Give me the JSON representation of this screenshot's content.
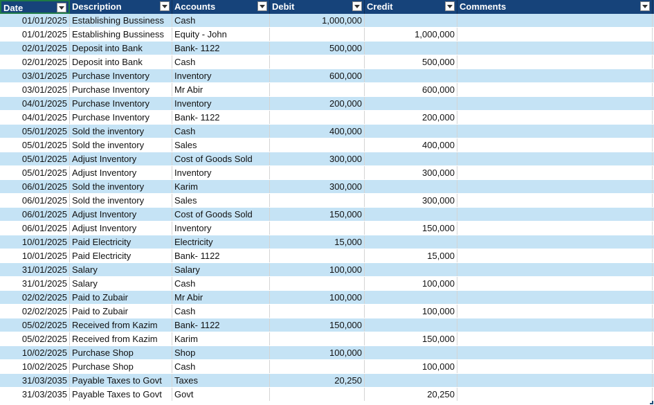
{
  "headers": {
    "date": "Date",
    "description": "Description",
    "accounts": "Accounts",
    "debit": "Debit",
    "credit": "Credit",
    "comments": "Comments"
  },
  "rows": [
    {
      "date": "01/01/2025",
      "description": "Establishing Bussiness",
      "account": "Cash",
      "debit": "1,000,000",
      "credit": "",
      "comments": ""
    },
    {
      "date": "01/01/2025",
      "description": "Establishing Bussiness",
      "account": "Equity - John",
      "debit": "",
      "credit": "1,000,000",
      "comments": ""
    },
    {
      "date": "02/01/2025",
      "description": "Deposit into Bank",
      "account": "Bank- 1122",
      "debit": "500,000",
      "credit": "",
      "comments": ""
    },
    {
      "date": "02/01/2025",
      "description": "Deposit into Bank",
      "account": "Cash",
      "debit": "",
      "credit": "500,000",
      "comments": ""
    },
    {
      "date": "03/01/2025",
      "description": "Purchase Inventory",
      "account": "Inventory",
      "debit": "600,000",
      "credit": "",
      "comments": ""
    },
    {
      "date": "03/01/2025",
      "description": "Purchase Inventory",
      "account": "Mr Abir",
      "debit": "",
      "credit": "600,000",
      "comments": ""
    },
    {
      "date": "04/01/2025",
      "description": "Purchase Inventory",
      "account": "Inventory",
      "debit": "200,000",
      "credit": "",
      "comments": ""
    },
    {
      "date": "04/01/2025",
      "description": "Purchase Inventory",
      "account": "Bank- 1122",
      "debit": "",
      "credit": "200,000",
      "comments": ""
    },
    {
      "date": "05/01/2025",
      "description": "Sold the inventory",
      "account": "Cash",
      "debit": "400,000",
      "credit": "",
      "comments": ""
    },
    {
      "date": "05/01/2025",
      "description": "Sold the inventory",
      "account": "Sales",
      "debit": "",
      "credit": "400,000",
      "comments": ""
    },
    {
      "date": "05/01/2025",
      "description": "Adjust Inventory",
      "account": "Cost of Goods Sold",
      "debit": "300,000",
      "credit": "",
      "comments": ""
    },
    {
      "date": "05/01/2025",
      "description": "Adjust Inventory",
      "account": "Inventory",
      "debit": "",
      "credit": "300,000",
      "comments": ""
    },
    {
      "date": "06/01/2025",
      "description": "Sold the inventory",
      "account": "Karim",
      "debit": "300,000",
      "credit": "",
      "comments": ""
    },
    {
      "date": "06/01/2025",
      "description": "Sold the inventory",
      "account": "Sales",
      "debit": "",
      "credit": "300,000",
      "comments": ""
    },
    {
      "date": "06/01/2025",
      "description": "Adjust Inventory",
      "account": "Cost of Goods Sold",
      "debit": "150,000",
      "credit": "",
      "comments": ""
    },
    {
      "date": "06/01/2025",
      "description": "Adjust Inventory",
      "account": "Inventory",
      "debit": "",
      "credit": "150,000",
      "comments": ""
    },
    {
      "date": "10/01/2025",
      "description": "Paid Electricity",
      "account": "Electricity",
      "debit": "15,000",
      "credit": "",
      "comments": ""
    },
    {
      "date": "10/01/2025",
      "description": "Paid Electricity",
      "account": "Bank- 1122",
      "debit": "",
      "credit": "15,000",
      "comments": ""
    },
    {
      "date": "31/01/2025",
      "description": "Salary",
      "account": "Salary",
      "debit": "100,000",
      "credit": "",
      "comments": ""
    },
    {
      "date": "31/01/2025",
      "description": "Salary",
      "account": "Cash",
      "debit": "",
      "credit": "100,000",
      "comments": ""
    },
    {
      "date": "02/02/2025",
      "description": "Paid to Zubair",
      "account": "Mr Abir",
      "debit": "100,000",
      "credit": "",
      "comments": ""
    },
    {
      "date": "02/02/2025",
      "description": "Paid to Zubair",
      "account": "Cash",
      "debit": "",
      "credit": "100,000",
      "comments": ""
    },
    {
      "date": "05/02/2025",
      "description": "Received from Kazim",
      "account": "Bank- 1122",
      "debit": "150,000",
      "credit": "",
      "comments": ""
    },
    {
      "date": "05/02/2025",
      "description": "Received from Kazim",
      "account": "Karim",
      "debit": "",
      "credit": "150,000",
      "comments": ""
    },
    {
      "date": "10/02/2025",
      "description": "Purchase Shop",
      "account": "Shop",
      "debit": "100,000",
      "credit": "",
      "comments": ""
    },
    {
      "date": "10/02/2025",
      "description": "Purchase Shop",
      "account": "Cash",
      "debit": "",
      "credit": "100,000",
      "comments": ""
    },
    {
      "date": "31/03/2035",
      "description": "Payable Taxes to Govt",
      "account": "Taxes",
      "debit": "20,250",
      "credit": "",
      "comments": ""
    },
    {
      "date": "31/03/2035",
      "description": "Payable Taxes to Govt",
      "account": "Govt",
      "debit": "",
      "credit": "20,250",
      "comments": ""
    }
  ],
  "colors": {
    "header_bg": "#16437a",
    "band_bg": "#c5e3f5",
    "selected_border": "#1e7a45"
  },
  "icons": {
    "filter": "filter-dropdown-icon",
    "resize": "table-resize-handle-icon"
  }
}
